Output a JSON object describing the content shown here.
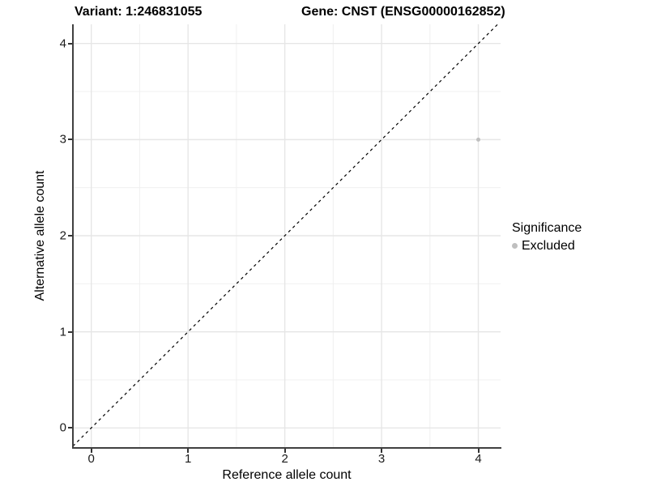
{
  "chart_data": {
    "type": "scatter",
    "titles": {
      "variant": "Variant: 1:246831055",
      "gene": "Gene: CNST (ENSG00000162852)"
    },
    "xlabel": "Reference allele count",
    "ylabel": "Alternative allele count",
    "xlim": [
      -0.19,
      4.23
    ],
    "ylim": [
      -0.2,
      4.2
    ],
    "x_ticks": [
      0,
      1,
      2,
      3,
      4
    ],
    "y_ticks": [
      0,
      1,
      2,
      3,
      4
    ],
    "x_minor_ticks": [
      0.5,
      1.5,
      2.5,
      3.5
    ],
    "y_minor_ticks": [
      0.5,
      1.5,
      2.5,
      3.5
    ],
    "grid": "major+minor",
    "reference_line": {
      "kind": "identity",
      "style": "dashed",
      "color": "#000000"
    },
    "series": [
      {
        "name": "Excluded",
        "color": "#bfbfbf",
        "points": [
          {
            "x": 4,
            "y": 3
          }
        ]
      }
    ],
    "legend": {
      "title": "Significance",
      "position": "right",
      "items": [
        {
          "label": "Excluded",
          "color": "#bfbfbf"
        }
      ]
    }
  },
  "colors": {
    "background": "#ffffff",
    "grid_major": "#e6e6e6",
    "grid_minor": "#f0f0f0",
    "axis_line": "#404040",
    "tick_mark": "#333333",
    "tick_label": "#1a1a1a",
    "text": "#000000"
  }
}
